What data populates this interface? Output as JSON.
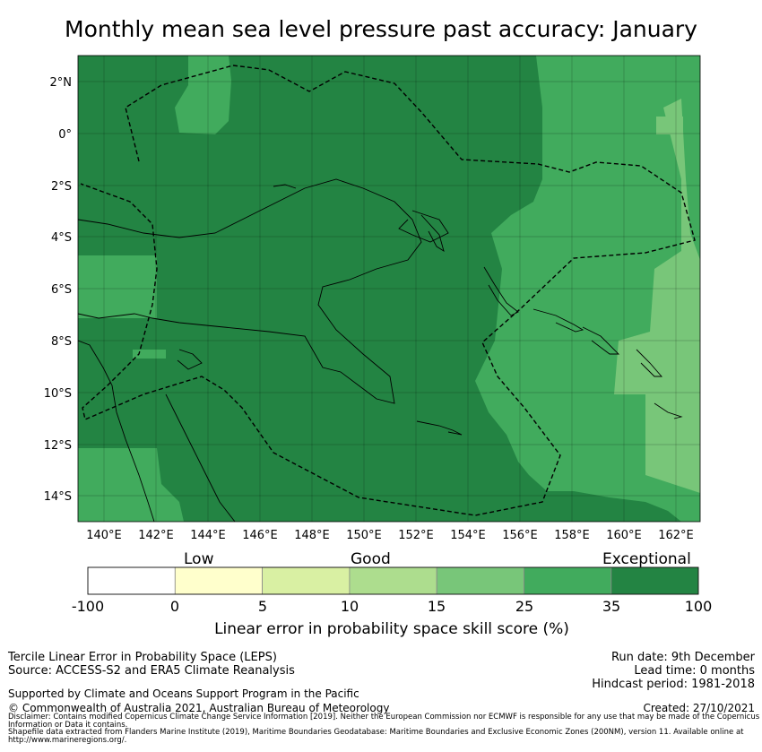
{
  "title": "Monthly mean sea level pressure past accuracy: January",
  "map": {
    "lon_labels": [
      "140°E",
      "142°E",
      "144°E",
      "146°E",
      "148°E",
      "150°E",
      "152°E",
      "154°E",
      "156°E",
      "158°E",
      "160°E",
      "162°E"
    ],
    "lat_labels": [
      "2°N",
      "0°",
      "2°S",
      "4°S",
      "6°S",
      "8°S",
      "10°S",
      "12°S",
      "14°S"
    ],
    "lon_range": [
      139,
      163
    ],
    "lat_range": [
      -15,
      3
    ],
    "colors": {
      "exceptional": "#238443",
      "band_25_35": "#41ab5d",
      "band_15_25": "#78c679",
      "band_10_15": "#addd8e",
      "band_5_10": "#d9f0a3",
      "band_0_5": "#ffffcc",
      "band_neg": "#ffffff"
    }
  },
  "colorbar": {
    "category_labels": [
      "Low",
      "Good",
      "Exceptional"
    ],
    "ticks": [
      "-100",
      "0",
      "5",
      "10",
      "15",
      "25",
      "35",
      "100"
    ],
    "title": "Linear error in probability space skill score (%)",
    "colors": [
      "#ffffff",
      "#ffffcc",
      "#d9f0a3",
      "#addd8e",
      "#78c679",
      "#41ab5d",
      "#238443"
    ]
  },
  "footer": {
    "left1": "Tercile Linear Error in Probability Space (LEPS)",
    "left2": "Source: ACCESS-S2 and ERA5 Climate Reanalysis",
    "supported": "Supported by Climate and Oceans Support Program in the Pacific",
    "copyright": "© Commonwealth of Australia 2021, Australian Bureau of Meteorology",
    "run_date": "Run date: 9th December",
    "lead_time": "Lead time: 0 months",
    "hindcast": "Hindcast period: 1981-2018",
    "created": "Created: 27/10/2021",
    "disclaimer": "Disclaimer: Contains modified Copernicus Climate Change Service Information [2019]. Neither the European Commission nor ECMWF is responsible for any use that may be made of the Copernicus Information or Data it contains.",
    "shapefile": "Shapefile data extracted from Flanders Marine Institute (2019), Maritime Boundaries Geodatabase: Maritime Boundaries and Exclusive Economic Zones (200NM), version 11. Available online at http://www.marineregions.org/."
  }
}
